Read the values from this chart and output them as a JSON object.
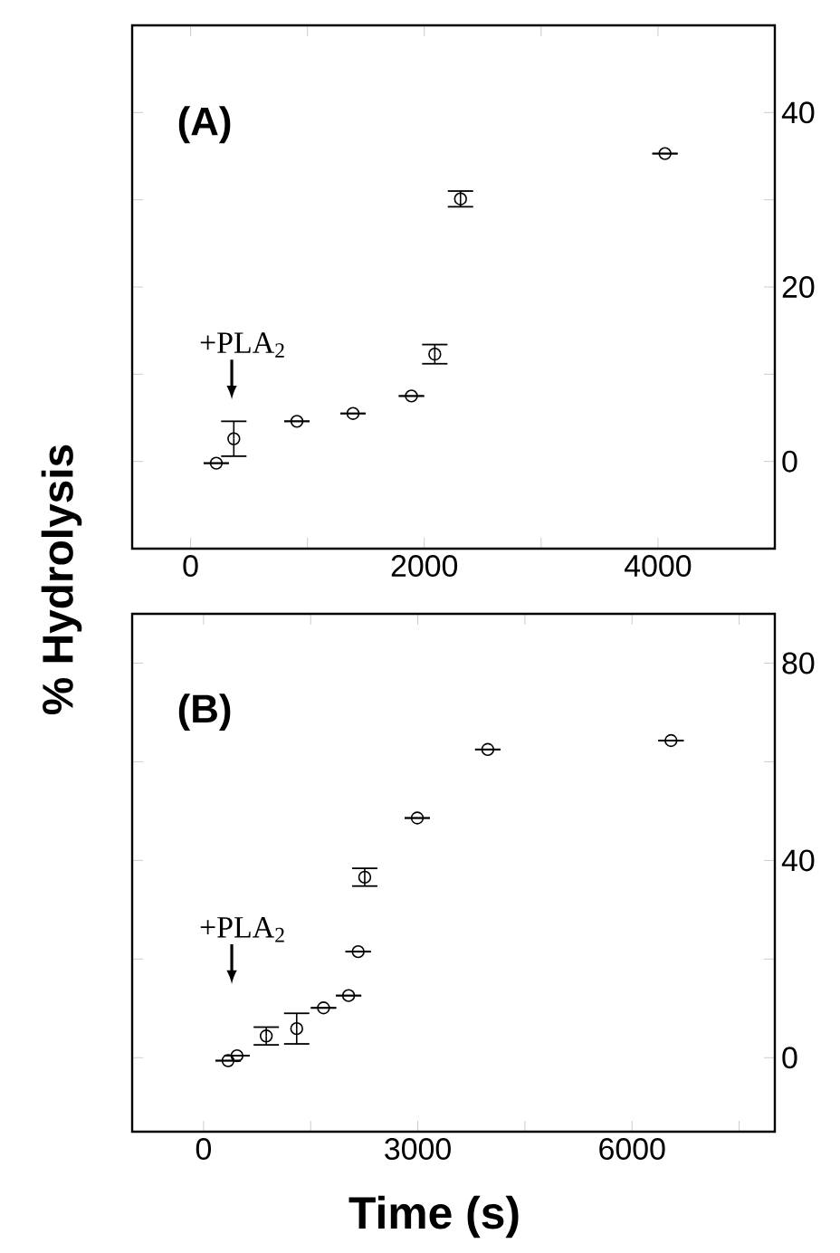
{
  "chart_data": [
    {
      "type": "scatter",
      "ylabel": "% Hydrolysis",
      "annotations": [
        "(A)",
        "+PLA$_{2}$"
      ],
      "x": [
        220,
        370,
        910,
        1390,
        1890,
        2090,
        2310,
        4060
      ],
      "values": [
        -0.2,
        2.6,
        4.6,
        5.5,
        7.5,
        12.3,
        30.1,
        35.3
      ],
      "errors": [
        null,
        2,
        null,
        null,
        null,
        1.1,
        0.9,
        null
      ],
      "color": "#000000",
      "marker": "circle",
      "xlim": [
        -500,
        5000
      ],
      "ylim": [
        -10,
        50
      ],
      "xticks": [
        0,
        {
          "value": 1000,
          "label": null
        },
        2000,
        {
          "value": 3000,
          "label": null
        },
        4000
      ],
      "yticks": [
        0,
        {
          "value": 10,
          "label": null
        },
        20,
        {
          "value": 30,
          "label": null
        },
        40
      ]
    },
    {
      "type": "scatter",
      "xlabel": "Time (s)",
      "annotations": [
        "(B)",
        "+PLA$_{2}$"
      ],
      "x": [
        343,
        468,
        878,
        1304,
        1680,
        2031,
        2165,
        2257,
        2993,
        3980,
        6546
      ],
      "values": [
        -0.6,
        0.4,
        4.4,
        5.9,
        10.1,
        12.6,
        21.5,
        36.6,
        48.6,
        62.5,
        64.3
      ],
      "errors": [
        null,
        null,
        1.8,
        3.1,
        null,
        null,
        null,
        1.8,
        null,
        null,
        null
      ],
      "color": "#000000",
      "marker": "circle",
      "xlim": [
        -1000,
        8000
      ],
      "ylim": [
        -15,
        90
      ],
      "xticks": [
        0,
        {
          "value": 1500,
          "label": null
        },
        3000,
        {
          "value": 4500,
          "label": null
        },
        6000,
        {
          "value": 7500,
          "label": null
        }
      ],
      "yticks": [
        0,
        {
          "value": 20,
          "label": null
        },
        40,
        {
          "value": 60,
          "label": null
        },
        80
      ]
    }
  ]
}
